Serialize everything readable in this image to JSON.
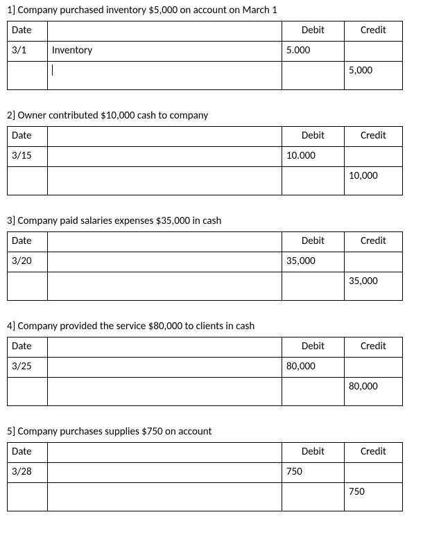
{
  "headers": {
    "date": "Date",
    "debit": "Debit",
    "credit": "Credit"
  },
  "entries": [
    {
      "title": "1] Company purchased inventory $5,000 on account on March 1",
      "date": "3/1",
      "account": "Inventory",
      "debit": "5.000",
      "credit": "5,000",
      "show_cursor": true
    },
    {
      "title": "2] Owner contributed $10,000 cash to company",
      "date": "3/15",
      "account": "",
      "debit": "10.000",
      "credit": "10,000",
      "show_cursor": false
    },
    {
      "title": "3] Company paid salaries expenses $35,000 in cash",
      "date": "3/20",
      "account": "",
      "debit": "35,000",
      "credit": "35,000",
      "show_cursor": false
    },
    {
      "title": "4] Company provided the service $80,000 to clients in cash",
      "date": "3/25",
      "account": "",
      "debit": "80,000",
      "credit": "80,000",
      "show_cursor": false
    },
    {
      "title": "5] Company purchases supplies $750 on account",
      "date": "3/28",
      "account": "",
      "debit": "750",
      "credit": "750",
      "show_cursor": false
    }
  ]
}
